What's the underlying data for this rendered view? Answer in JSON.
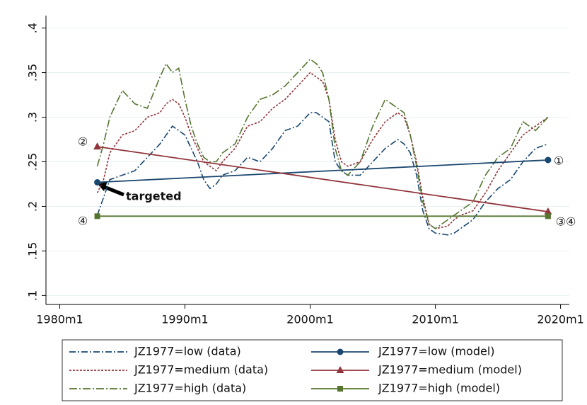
{
  "chart_data": {
    "type": "line",
    "x": [
      1983,
      1983.5,
      1984,
      1985,
      1986,
      1987,
      1988,
      1988.5,
      1989,
      1989.5,
      1990,
      1990.5,
      1991,
      1991.5,
      1992,
      1992.5,
      1993,
      1994,
      1995,
      1996,
      1997,
      1998,
      1999,
      2000,
      2000.5,
      2001,
      2001.5,
      2002,
      2002.5,
      2003,
      2004,
      2005,
      2006,
      2007,
      2007.5,
      2008,
      2008.5,
      2009,
      2009.5,
      2010,
      2011,
      2011.5,
      2012,
      2013,
      2014,
      2015,
      2016,
      2017,
      2018,
      2019
    ],
    "series": [
      {
        "name": "JZ1977=low (data)",
        "color": "#1a476f",
        "line_style": "dashdot",
        "values": [
          0.19,
          0.21,
          0.23,
          0.235,
          0.24,
          0.255,
          0.27,
          0.28,
          0.29,
          0.285,
          0.28,
          0.265,
          0.25,
          0.23,
          0.22,
          0.225,
          0.235,
          0.24,
          0.255,
          0.25,
          0.265,
          0.285,
          0.29,
          0.305,
          0.305,
          0.3,
          0.295,
          0.25,
          0.24,
          0.235,
          0.235,
          0.25,
          0.265,
          0.275,
          0.27,
          0.26,
          0.235,
          0.195,
          0.175,
          0.17,
          0.168,
          0.17,
          0.175,
          0.185,
          0.205,
          0.22,
          0.23,
          0.25,
          0.265,
          0.27
        ]
      },
      {
        "name": "JZ1977=medium (data)",
        "color": "#90353b",
        "line_style": "dot",
        "values": [
          0.215,
          0.23,
          0.26,
          0.28,
          0.285,
          0.3,
          0.305,
          0.315,
          0.32,
          0.315,
          0.3,
          0.28,
          0.265,
          0.25,
          0.245,
          0.24,
          0.25,
          0.265,
          0.29,
          0.295,
          0.31,
          0.32,
          0.335,
          0.35,
          0.345,
          0.34,
          0.32,
          0.275,
          0.25,
          0.245,
          0.25,
          0.275,
          0.295,
          0.305,
          0.3,
          0.28,
          0.25,
          0.21,
          0.18,
          0.175,
          0.178,
          0.185,
          0.19,
          0.195,
          0.215,
          0.24,
          0.26,
          0.28,
          0.29,
          0.3
        ]
      },
      {
        "name": "JZ1977=high (data)",
        "color": "#55752f",
        "line_style": "longdashdot",
        "values": [
          0.245,
          0.27,
          0.3,
          0.33,
          0.315,
          0.31,
          0.345,
          0.36,
          0.35,
          0.355,
          0.32,
          0.29,
          0.27,
          0.255,
          0.25,
          0.25,
          0.26,
          0.27,
          0.3,
          0.32,
          0.325,
          0.335,
          0.35,
          0.365,
          0.36,
          0.35,
          0.32,
          0.265,
          0.24,
          0.235,
          0.25,
          0.29,
          0.32,
          0.31,
          0.305,
          0.28,
          0.245,
          0.205,
          0.18,
          0.175,
          0.185,
          0.19,
          0.195,
          0.205,
          0.235,
          0.255,
          0.265,
          0.295,
          0.285,
          0.3
        ]
      },
      {
        "name": "JZ1977=low (model)",
        "color": "#1a476f",
        "line_style": "solid",
        "marker": "circle",
        "x": [
          1983,
          2019
        ],
        "values": [
          0.227,
          0.252
        ]
      },
      {
        "name": "JZ1977=medium (model)",
        "color": "#90353b",
        "line_style": "solid",
        "marker": "triangle",
        "x": [
          1983,
          2019
        ],
        "values": [
          0.267,
          0.194
        ]
      },
      {
        "name": "JZ1977=high (model)",
        "color": "#55752f",
        "line_style": "solid",
        "marker": "square",
        "x": [
          1983,
          2019
        ],
        "values": [
          0.189,
          0.189
        ]
      }
    ],
    "xlim": [
      1978.9,
      2020.7
    ],
    "xticks": [
      {
        "value": 1980,
        "label": "1980m1"
      },
      {
        "value": 1990,
        "label": "1990m1"
      },
      {
        "value": 2000,
        "label": "2000m1"
      },
      {
        "value": 2010,
        "label": "2010m1"
      },
      {
        "value": 2020,
        "label": "2020m1"
      }
    ],
    "ylim": [
      0.09,
      0.41
    ],
    "yticks": [
      {
        "value": 0.1,
        "label": ".1"
      },
      {
        "value": 0.15,
        "label": ".15"
      },
      {
        "value": 0.2,
        "label": ".2"
      },
      {
        "value": 0.25,
        "label": ".25"
      },
      {
        "value": 0.3,
        "label": ".3"
      },
      {
        "value": 0.35,
        "label": ".35"
      },
      {
        "value": 0.4,
        "label": ".4"
      }
    ],
    "grid": true,
    "annotations": [
      "②",
      "④",
      "①",
      "③④",
      "targeted"
    ]
  }
}
